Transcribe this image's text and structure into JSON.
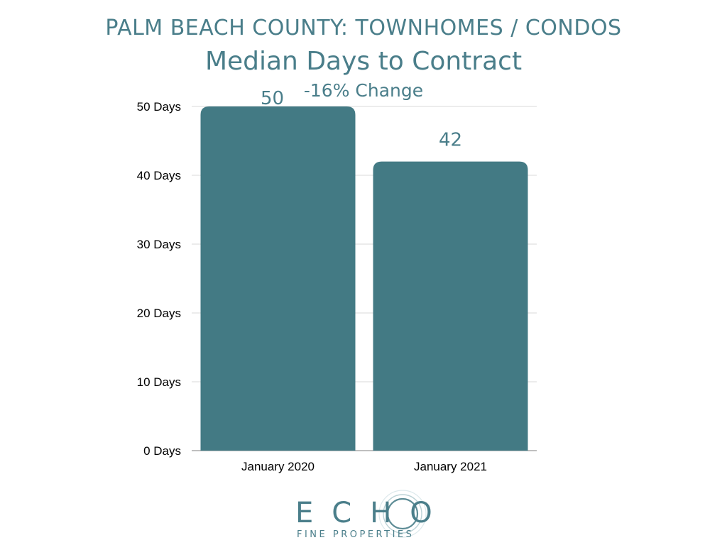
{
  "header": {
    "subtitle": "PALM BEACH COUNTY: TOWNHOMES / CONDOS"
  },
  "chart_data": {
    "type": "bar",
    "title": "Median Days to Contract",
    "annotation": "-16% Change",
    "categories": [
      "January 2020",
      "January 2021"
    ],
    "values": [
      50,
      42
    ],
    "value_labels": [
      "50",
      "42"
    ],
    "xlabel": "",
    "ylabel": "",
    "ylim": [
      0,
      50
    ],
    "yticks": [
      0,
      10,
      20,
      30,
      40,
      50
    ],
    "ytick_labels": [
      "0 Days",
      "10 Days",
      "20 Days",
      "30 Days",
      "40 Days",
      "50 Days"
    ],
    "grid": true,
    "bar_color": "#437a84",
    "label_color": "#4a7e8a"
  },
  "logo": {
    "word": "ECHO",
    "tagline": "FINE PROPERTIES",
    "color": "#4a7e8a"
  }
}
